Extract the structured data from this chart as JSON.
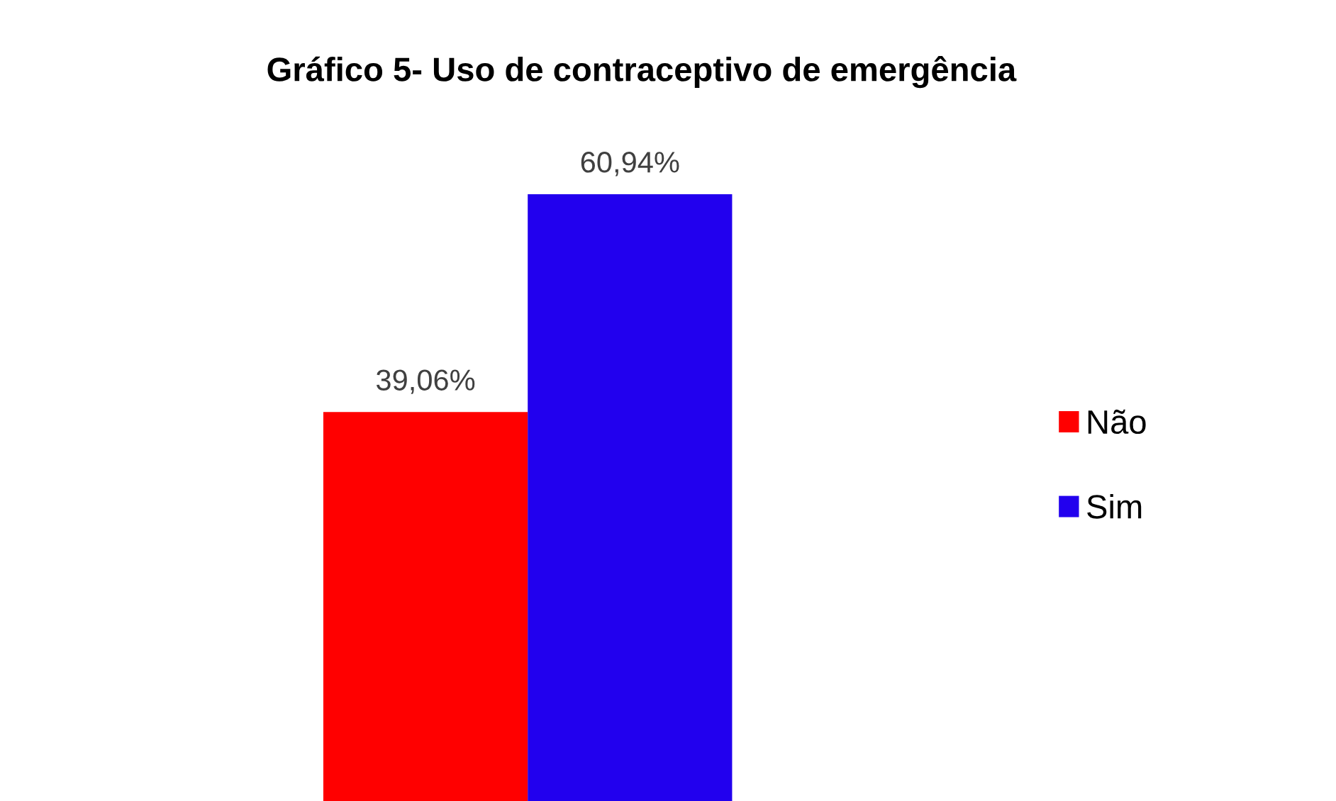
{
  "chart_data": {
    "type": "bar",
    "title": "Gráfico 5- Uso de contraceptivo de emergência",
    "categories": [
      null
    ],
    "series": [
      {
        "name": "Não",
        "color": "#ff0000",
        "values": [
          39.06
        ],
        "value_labels": [
          "39,06%"
        ]
      },
      {
        "name": "Sim",
        "color": "#2200ee",
        "values": [
          60.94
        ],
        "value_labels": [
          "60,94%"
        ]
      }
    ],
    "tick_labels": false,
    "grid": false,
    "legend": "right"
  }
}
